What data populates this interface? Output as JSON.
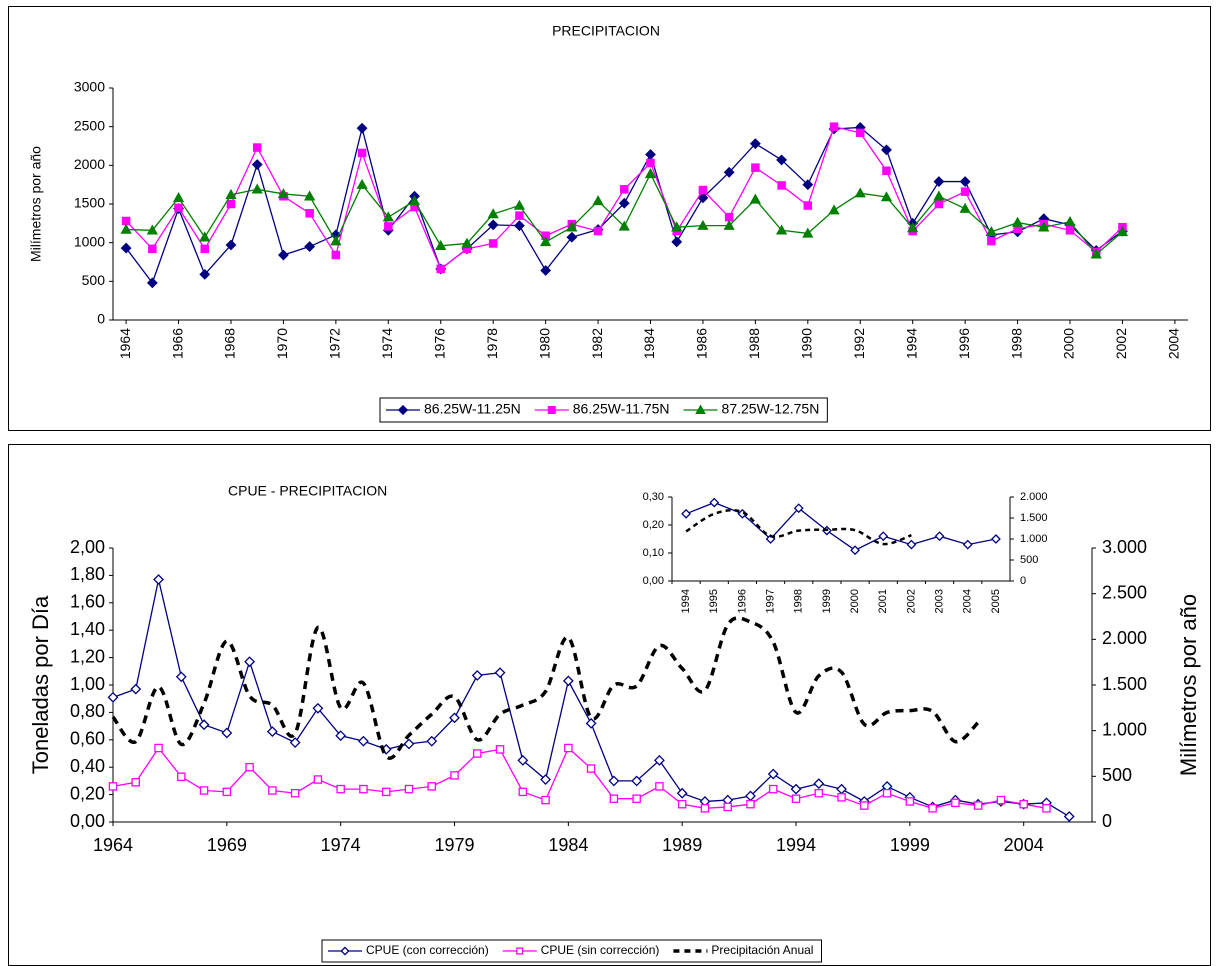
{
  "chart_data": [
    {
      "type": "line",
      "title": "PRECIPITACION",
      "y_label": "Milímetros por año",
      "legend": "bottom",
      "x": [
        1964,
        1965,
        1966,
        1967,
        1968,
        1969,
        1970,
        1971,
        1972,
        1973,
        1974,
        1975,
        1976,
        1977,
        1978,
        1979,
        1980,
        1981,
        1982,
        1983,
        1984,
        1985,
        1986,
        1987,
        1988,
        1989,
        1990,
        1991,
        1992,
        1993,
        1994,
        1995,
        1996,
        1997,
        1998,
        1999,
        2000,
        2001,
        2002
      ],
      "xlim": [
        1963.5,
        2004.5
      ],
      "xticks": [
        1964,
        1966,
        1968,
        1970,
        1972,
        1974,
        1976,
        1978,
        1980,
        1982,
        1984,
        1986,
        1988,
        1990,
        1992,
        1994,
        1996,
        1998,
        2000,
        2002,
        2004
      ],
      "ylim": [
        0,
        3000
      ],
      "yticks": [
        0,
        500,
        1000,
        1500,
        2000,
        2500,
        3000
      ],
      "series": [
        {
          "name": "86.25W-11.25N",
          "color": "#000080",
          "marker": "diamond",
          "filled": true,
          "values": [
            930,
            480,
            1440,
            590,
            970,
            2010,
            840,
            950,
            1100,
            2480,
            1160,
            1600,
            660,
            920,
            1230,
            1220,
            640,
            1070,
            1170,
            1510,
            2140,
            1010,
            1580,
            1910,
            2280,
            2070,
            1750,
            2470,
            2490,
            2200,
            1250,
            1790,
            1790,
            1100,
            1140,
            1310,
            1230,
            900,
            1150
          ]
        },
        {
          "name": "86.25W-11.75N",
          "color": "#ff00ff",
          "marker": "square",
          "filled": true,
          "values": [
            1280,
            920,
            1450,
            920,
            1500,
            2230,
            1600,
            1380,
            840,
            2160,
            1210,
            1460,
            660,
            920,
            990,
            1350,
            1090,
            1240,
            1150,
            1690,
            2030,
            1150,
            1680,
            1330,
            1970,
            1740,
            1480,
            2500,
            2420,
            1930,
            1150,
            1500,
            1660,
            1020,
            1180,
            1240,
            1160,
            880,
            1200
          ]
        },
        {
          "name": "87.25W-12.75N",
          "color": "#008000",
          "marker": "triangle",
          "filled": true,
          "values": [
            1170,
            1160,
            1580,
            1070,
            1620,
            1690,
            1630,
            1600,
            1020,
            1750,
            1330,
            1540,
            960,
            990,
            1370,
            1480,
            1010,
            1200,
            1540,
            1210,
            1890,
            1200,
            1220,
            1220,
            1560,
            1160,
            1120,
            1420,
            1640,
            1590,
            1190,
            1600,
            1440,
            1140,
            1260,
            1200,
            1270,
            850,
            1140
          ]
        }
      ]
    },
    {
      "type": "line",
      "title": "CPUE - PRECIPITACION",
      "y_label": "Toneladas por Día",
      "y2_label": "Milímetros por año",
      "legend": "bottom",
      "x": [
        1964,
        1965,
        1966,
        1967,
        1968,
        1969,
        1970,
        1971,
        1972,
        1973,
        1974,
        1975,
        1976,
        1977,
        1978,
        1979,
        1980,
        1981,
        1982,
        1983,
        1984,
        1985,
        1986,
        1987,
        1988,
        1989,
        1990,
        1991,
        1992,
        1993,
        1994,
        1995,
        1996,
        1997,
        1998,
        1999,
        2000,
        2001,
        2002,
        2003,
        2004,
        2005,
        2006
      ],
      "xlim": [
        1964,
        2007
      ],
      "xticks": [
        1964,
        1969,
        1974,
        1979,
        1984,
        1989,
        1994,
        1999,
        2004
      ],
      "ylim": [
        0,
        2
      ],
      "yticks": [
        {
          "value": 0,
          "label": "0,00"
        },
        {
          "value": 0.2,
          "label": "0,20"
        },
        {
          "value": 0.4,
          "label": "0,40"
        },
        {
          "value": 0.6,
          "label": "0,60"
        },
        {
          "value": 0.8,
          "label": "0,80"
        },
        {
          "value": 1,
          "label": "1,00"
        },
        {
          "value": 1.2,
          "label": "1,20"
        },
        {
          "value": 1.4,
          "label": "1,40"
        },
        {
          "value": 1.6,
          "label": "1,60"
        },
        {
          "value": 1.8,
          "label": "1,80"
        },
        {
          "value": 2,
          "label": "2,00"
        }
      ],
      "y2lim": [
        0,
        3000
      ],
      "y2ticks": [
        0,
        500,
        {
          "value": 1000,
          "label": "1.000"
        },
        {
          "value": 1500,
          "label": "1.500"
        },
        {
          "value": 2000,
          "label": "2.000"
        },
        {
          "value": 2500,
          "label": "2.500"
        },
        {
          "value": 3000,
          "label": "3.000"
        }
      ],
      "series": [
        {
          "name": "CPUE (con corrección)",
          "color": "#000080",
          "marker": "diamond",
          "filled": false,
          "values": [
            0.91,
            0.97,
            1.77,
            1.06,
            0.71,
            0.65,
            1.17,
            0.66,
            0.58,
            0.83,
            0.63,
            0.59,
            0.53,
            0.57,
            0.59,
            0.76,
            1.07,
            1.09,
            0.45,
            0.31,
            1.03,
            0.72,
            0.3,
            0.3,
            0.45,
            0.21,
            0.15,
            0.16,
            0.19,
            0.35,
            0.24,
            0.28,
            0.24,
            0.15,
            0.26,
            0.18,
            0.11,
            0.16,
            0.13,
            0.15,
            0.13,
            0.14,
            0.04
          ]
        },
        {
          "name": "CPUE (sin corrección)",
          "color": "#ff00ff",
          "marker": "square",
          "filled": false,
          "values": [
            0.26,
            0.29,
            0.54,
            0.33,
            0.23,
            0.22,
            0.4,
            0.23,
            0.21,
            0.31,
            0.24,
            0.24,
            0.22,
            0.24,
            0.26,
            0.34,
            0.5,
            0.53,
            0.22,
            0.16,
            0.54,
            0.39,
            0.17,
            0.17,
            0.26,
            0.13,
            0.1,
            0.11,
            0.13,
            0.24,
            0.17,
            0.21,
            0.18,
            0.12,
            0.21,
            0.15,
            0.1,
            0.14,
            0.12,
            0.16,
            0.13,
            0.1,
            null
          ]
        },
        {
          "name": "Precipitación Anual",
          "color": "#000000",
          "marker": "none",
          "dashed": true,
          "axis": "y2",
          "values": [
            1150,
            880,
            1480,
            850,
            1300,
            1980,
            1380,
            1280,
            970,
            2130,
            1250,
            1520,
            720,
            950,
            1180,
            1370,
            900,
            1180,
            1280,
            1430,
            2020,
            1140,
            1500,
            1490,
            1930,
            1680,
            1440,
            2160,
            2190,
            1970,
            1200,
            1600,
            1640,
            1070,
            1200,
            1220,
            1210,
            880,
            1090,
            null,
            null,
            null,
            null
          ]
        }
      ]
    },
    {
      "type": "line",
      "categories": [
        "1994",
        "1995",
        "1996",
        "1997",
        "1998",
        "1999",
        "2000",
        "2001",
        "2002",
        "2003",
        "2004",
        "2005"
      ],
      "ylim": [
        0,
        0.3
      ],
      "yticks": [
        {
          "value": 0,
          "label": "0,00"
        },
        {
          "value": 0.1,
          "label": "0,10"
        },
        {
          "value": 0.2,
          "label": "0,20"
        },
        {
          "value": 0.3,
          "label": "0,30"
        }
      ],
      "y2lim": [
        0,
        2000
      ],
      "y2ticks": [
        0,
        500,
        {
          "value": 1000,
          "label": "1.000"
        },
        {
          "value": 1500,
          "label": "1.500"
        },
        {
          "value": 2000,
          "label": "2.000"
        }
      ],
      "series": [
        {
          "color": "#000080",
          "marker": "diamond",
          "filled": false,
          "values": [
            0.24,
            0.28,
            0.24,
            0.15,
            0.26,
            0.18,
            0.11,
            0.16,
            0.13,
            0.16,
            0.13,
            0.15
          ]
        },
        {
          "color": "#000000",
          "marker": "none",
          "dashed": true,
          "axis": "y2",
          "values": [
            1180,
            1600,
            1640,
            1070,
            1200,
            1220,
            1210,
            880,
            1090,
            null,
            null,
            null
          ]
        }
      ]
    }
  ]
}
